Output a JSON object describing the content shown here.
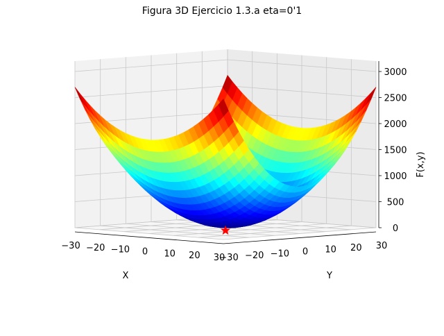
{
  "chart_data": {
    "type": "surface3d",
    "title": "Figura 3D Ejercicio 1.3.a eta=0'1",
    "xlabel": "X",
    "ylabel": "Y",
    "zlabel": "F(x,y)",
    "x_ticks": [
      "−30",
      "−20",
      "−10",
      "0",
      "10",
      "20",
      "30"
    ],
    "y_ticks": [
      "−30",
      "−20",
      "−10",
      "0",
      "10",
      "20",
      "30"
    ],
    "z_ticks": [
      "0",
      "500",
      "1000",
      "1500",
      "2000",
      "2500",
      "3000"
    ],
    "xlim": [
      -30,
      30
    ],
    "ylim": [
      -30,
      30
    ],
    "zlim": [
      0,
      3200
    ],
    "surface_function": "x^2 + 2*y^2 + 2*sin(2*pi*x)*sin(2*pi*y)",
    "colormap": "jet",
    "grid": true,
    "minimum_marker": {
      "x": 0,
      "y": 0,
      "z": 0,
      "color": "#ff0000",
      "shape": "star"
    }
  }
}
